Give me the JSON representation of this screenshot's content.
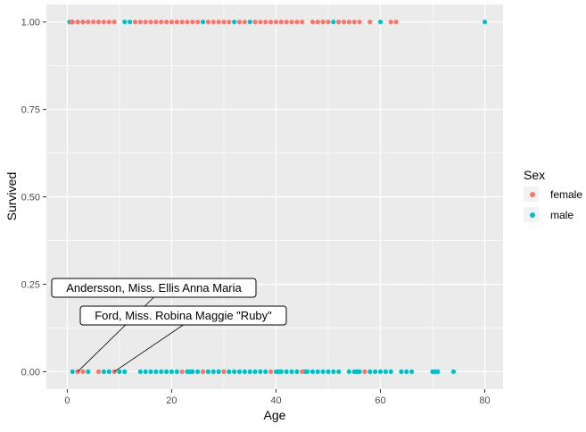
{
  "chart_data": {
    "type": "scatter",
    "xlabel": "Age",
    "ylabel": "Survived",
    "xlim": [
      -4,
      83.5
    ],
    "ylim": [
      -0.05,
      1.05
    ],
    "x_ticks": [
      0,
      20,
      40,
      60,
      80
    ],
    "y_ticks": [
      0,
      0.25,
      0.5,
      0.75,
      1.0
    ],
    "x_tick_labels": [
      "0",
      "20",
      "40",
      "60",
      "80"
    ],
    "y_tick_labels": [
      "0.00",
      "0.25",
      "0.50",
      "0.75",
      "1.00"
    ],
    "grid": true,
    "legend": {
      "title": "Sex",
      "position": "right",
      "entries": [
        "female",
        "male"
      ]
    },
    "colors": {
      "female": "#F8766D",
      "male": "#00BFC4",
      "panel": "#EBEBEB",
      "grid": "#FFFFFF"
    },
    "series": [
      {
        "name": "female",
        "color": "#F8766D",
        "points": [
          [
            0.75,
            1
          ],
          [
            1,
            1
          ],
          [
            2,
            1
          ],
          [
            3,
            1
          ],
          [
            4,
            1
          ],
          [
            5,
            1
          ],
          [
            6,
            1
          ],
          [
            7,
            1
          ],
          [
            8,
            1
          ],
          [
            9,
            1
          ],
          [
            13,
            1
          ],
          [
            14,
            1
          ],
          [
            15,
            1
          ],
          [
            16,
            1
          ],
          [
            17,
            1
          ],
          [
            18,
            1
          ],
          [
            19,
            1
          ],
          [
            20,
            1
          ],
          [
            21,
            1
          ],
          [
            22,
            1
          ],
          [
            23,
            1
          ],
          [
            24,
            1
          ],
          [
            25,
            1
          ],
          [
            27,
            1
          ],
          [
            28,
            1
          ],
          [
            29,
            1
          ],
          [
            30,
            1
          ],
          [
            31,
            1
          ],
          [
            33,
            1
          ],
          [
            34,
            1
          ],
          [
            36,
            1
          ],
          [
            37,
            1
          ],
          [
            38,
            1
          ],
          [
            39,
            1
          ],
          [
            40,
            1
          ],
          [
            41,
            1
          ],
          [
            42,
            1
          ],
          [
            43,
            1
          ],
          [
            44,
            1
          ],
          [
            45,
            1
          ],
          [
            47,
            1
          ],
          [
            48,
            1
          ],
          [
            49,
            1
          ],
          [
            50,
            1
          ],
          [
            52,
            1
          ],
          [
            53,
            1
          ],
          [
            54,
            1
          ],
          [
            55,
            1
          ],
          [
            56,
            1
          ],
          [
            58,
            1
          ],
          [
            62,
            1
          ],
          [
            63,
            1
          ],
          [
            2,
            0
          ],
          [
            3,
            0
          ],
          [
            6,
            0
          ],
          [
            9,
            0
          ],
          [
            22,
            0
          ],
          [
            26,
            0
          ],
          [
            30,
            0
          ],
          [
            39,
            0
          ],
          [
            45,
            0
          ],
          [
            57,
            0
          ]
        ]
      },
      {
        "name": "male",
        "color": "#00BFC4",
        "points": [
          [
            0.42,
            1
          ],
          [
            0.67,
            1
          ],
          [
            0.83,
            1
          ],
          [
            0.92,
            1
          ],
          [
            1,
            1
          ],
          [
            2,
            1
          ],
          [
            3,
            1
          ],
          [
            4,
            1
          ],
          [
            6,
            1
          ],
          [
            9,
            1
          ],
          [
            11,
            1
          ],
          [
            12,
            1
          ],
          [
            26,
            1
          ],
          [
            32,
            1
          ],
          [
            33,
            1
          ],
          [
            35,
            1
          ],
          [
            36,
            1
          ],
          [
            48,
            1
          ],
          [
            49,
            1
          ],
          [
            51,
            1
          ],
          [
            52,
            1
          ],
          [
            60,
            1
          ],
          [
            80,
            1
          ],
          [
            1,
            0
          ],
          [
            2,
            0
          ],
          [
            4,
            0
          ],
          [
            7,
            0
          ],
          [
            8,
            0
          ],
          [
            9,
            0
          ],
          [
            10,
            0
          ],
          [
            11,
            0
          ],
          [
            14,
            0
          ],
          [
            15,
            0
          ],
          [
            16,
            0
          ],
          [
            17,
            0
          ],
          [
            18,
            0
          ],
          [
            19,
            0
          ],
          [
            20,
            0
          ],
          [
            21,
            0
          ],
          [
            23,
            0
          ],
          [
            23.5,
            0
          ],
          [
            24,
            0
          ],
          [
            25,
            0
          ],
          [
            26,
            0
          ],
          [
            27,
            0
          ],
          [
            28,
            0
          ],
          [
            29,
            0
          ],
          [
            30,
            0
          ],
          [
            31,
            0
          ],
          [
            32,
            0
          ],
          [
            33,
            0
          ],
          [
            34,
            0
          ],
          [
            35,
            0
          ],
          [
            36,
            0
          ],
          [
            37,
            0
          ],
          [
            38,
            0
          ],
          [
            40,
            0
          ],
          [
            40.5,
            0
          ],
          [
            41,
            0
          ],
          [
            42,
            0
          ],
          [
            43,
            0
          ],
          [
            44,
            0
          ],
          [
            45.5,
            0
          ],
          [
            46,
            0
          ],
          [
            47,
            0
          ],
          [
            48,
            0
          ],
          [
            49,
            0
          ],
          [
            50,
            0
          ],
          [
            51,
            0
          ],
          [
            52,
            0
          ],
          [
            54,
            0
          ],
          [
            55,
            0
          ],
          [
            55.5,
            0
          ],
          [
            56,
            0
          ],
          [
            58,
            0
          ],
          [
            59,
            0
          ],
          [
            60,
            0
          ],
          [
            61,
            0
          ],
          [
            62,
            0
          ],
          [
            64,
            0
          ],
          [
            65,
            0
          ],
          [
            66,
            0
          ],
          [
            70,
            0
          ],
          [
            70.5,
            0
          ],
          [
            71,
            0
          ],
          [
            74,
            0
          ]
        ]
      }
    ],
    "annotations": [
      {
        "text": "Andersson, Miss. Ellis Anna Maria",
        "x": 2,
        "y": 0
      },
      {
        "text": "Ford, Miss. Robina Maggie \"Ruby\"",
        "x": 9,
        "y": 0
      }
    ]
  }
}
